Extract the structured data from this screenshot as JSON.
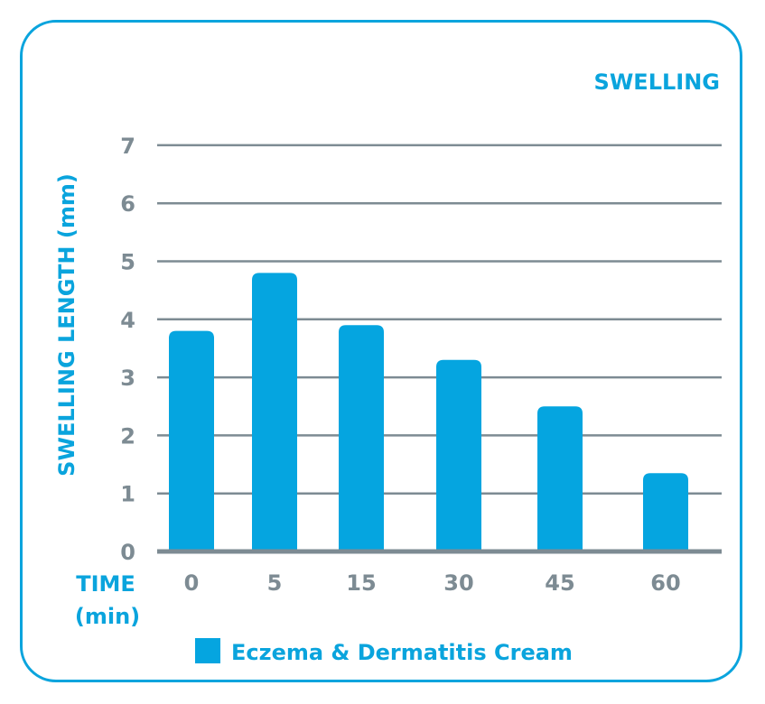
{
  "chart_data": {
    "type": "bar",
    "title": "SWELLING",
    "xlabel": "TIME",
    "xlabel_unit": "(min)",
    "ylabel": "SWELLING LENGTH (mm)",
    "categories": [
      "0",
      "5",
      "15",
      "30",
      "45",
      "60"
    ],
    "series": [
      {
        "name": "Eczema & Dermatitis Cream",
        "values": [
          3.8,
          4.8,
          3.9,
          3.3,
          2.5,
          1.35
        ]
      }
    ],
    "yticks": [
      "0",
      "1",
      "2",
      "3",
      "4",
      "5",
      "6",
      "7"
    ],
    "ylim": [
      0,
      7
    ],
    "grid": true,
    "legend": "bottom",
    "colors": {
      "bar": "#05a5e0",
      "accent": "#0aa4dd",
      "grid": "#7d8b93"
    }
  }
}
